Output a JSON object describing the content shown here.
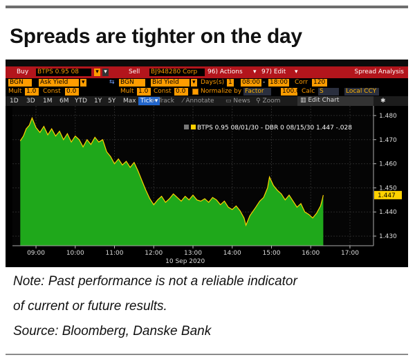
{
  "headline": "Spreads are tighter on the day",
  "toolbar": {
    "buy_label": "Buy",
    "buy_security": "BTPS 0.95 08",
    "sell_label": "Sell",
    "sell_security": "BJ948280 Corp",
    "actions_label": "96) Actions",
    "edit_label": "97) Edit",
    "app_title": "Spread Analysis"
  },
  "row_a": {
    "source": "BGN",
    "field": "Ask Yield",
    "source2": "BGN",
    "field2": "Bid Yield",
    "days_label": "Days(s)",
    "days_value": "1",
    "time_from": "08:00",
    "time_to": "18:00",
    "corr_label": "Corr",
    "corr_value": "120"
  },
  "row_b": {
    "mult_label": "Mult",
    "mult_value": "1.0",
    "const_label": "Const",
    "const_value": "0.0",
    "mult2_label": "Mult",
    "mult2_value": "1.0",
    "const2_label": "Const",
    "const2_value": "0.0",
    "normalize_label": "Normalize by",
    "normalize_option": "Factor",
    "factor_value": "100.0",
    "calc_label": "Calc",
    "calc_option": "S",
    "currency_option": "Local CCY"
  },
  "timeframes": [
    "1D",
    "3D",
    "1M",
    "6M",
    "YTD",
    "1Y",
    "5Y",
    "Max"
  ],
  "selected_timeframe": "Tick",
  "chart_tools": [
    "Track",
    "Annotate",
    "News",
    "Zoom"
  ],
  "edit_chart_label": "Edit Chart",
  "legend_text": "BTPS 0.95 08/01/30 - DBR 0 08/15/30 1.447 -.028",
  "date_label": "10 Sep 2020",
  "notes": {
    "line1": "Note: Past performance is not a reliable indicator",
    "line2": "of current or future results.",
    "line3": "Source: Bloomberg, Danske Bank"
  },
  "colors": {
    "area_fill": "#1fa81b",
    "price_line": "#ffd200",
    "last_badge": "#ffd200",
    "header_bar": "#b3151c",
    "field_box": "#ff9c00"
  },
  "chart_data": {
    "type": "area",
    "title": "",
    "xlabel": "",
    "ylabel": "",
    "ylim": [
      1.426,
      1.484
    ],
    "x_ticks": [
      "09:00",
      "10:00",
      "11:00",
      "12:00",
      "13:00",
      "14:00",
      "15:00",
      "16:00",
      "17:00"
    ],
    "y_ticks": [
      "1.480",
      "1.470",
      "1.460",
      "1.450",
      "1.440",
      "1.430"
    ],
    "last_value": "1.447",
    "series": [
      {
        "name": "BTPS 0.95 08/01/30 - DBR 0 08/15/30",
        "points": [
          [
            8.6,
            1.4695
          ],
          [
            8.68,
            1.4715
          ],
          [
            8.75,
            1.4745
          ],
          [
            8.83,
            1.476
          ],
          [
            8.9,
            1.479
          ],
          [
            8.95,
            1.477
          ],
          [
            9.0,
            1.475
          ],
          [
            9.1,
            1.473
          ],
          [
            9.2,
            1.4755
          ],
          [
            9.3,
            1.472
          ],
          [
            9.4,
            1.4745
          ],
          [
            9.5,
            1.4715
          ],
          [
            9.6,
            1.4735
          ],
          [
            9.7,
            1.47
          ],
          [
            9.8,
            1.4725
          ],
          [
            9.9,
            1.469
          ],
          [
            10.0,
            1.4715
          ],
          [
            10.1,
            1.47
          ],
          [
            10.2,
            1.467
          ],
          [
            10.3,
            1.47
          ],
          [
            10.4,
            1.468
          ],
          [
            10.5,
            1.471
          ],
          [
            10.6,
            1.469
          ],
          [
            10.7,
            1.47
          ],
          [
            10.8,
            1.465
          ],
          [
            10.9,
            1.463
          ],
          [
            11.0,
            1.46
          ],
          [
            11.1,
            1.462
          ],
          [
            11.2,
            1.4595
          ],
          [
            11.3,
            1.461
          ],
          [
            11.4,
            1.4585
          ],
          [
            11.5,
            1.4605
          ],
          [
            11.6,
            1.457
          ],
          [
            11.7,
            1.453
          ],
          [
            11.8,
            1.449
          ],
          [
            11.9,
            1.4455
          ],
          [
            12.0,
            1.443
          ],
          [
            12.1,
            1.445
          ],
          [
            12.2,
            1.4465
          ],
          [
            12.3,
            1.444
          ],
          [
            12.4,
            1.4455
          ],
          [
            12.5,
            1.4475
          ],
          [
            12.6,
            1.446
          ],
          [
            12.7,
            1.4445
          ],
          [
            12.8,
            1.4465
          ],
          [
            12.9,
            1.445
          ],
          [
            13.0,
            1.447
          ],
          [
            13.1,
            1.445
          ],
          [
            13.2,
            1.4445
          ],
          [
            13.3,
            1.4455
          ],
          [
            13.4,
            1.444
          ],
          [
            13.5,
            1.446
          ],
          [
            13.6,
            1.445
          ],
          [
            13.7,
            1.443
          ],
          [
            13.8,
            1.4445
          ],
          [
            13.9,
            1.442
          ],
          [
            14.0,
            1.441
          ],
          [
            14.1,
            1.4425
          ],
          [
            14.2,
            1.4405
          ],
          [
            14.3,
            1.4375
          ],
          [
            14.35,
            1.4345
          ],
          [
            14.45,
            1.4385
          ],
          [
            14.6,
            1.442
          ],
          [
            14.7,
            1.4445
          ],
          [
            14.8,
            1.446
          ],
          [
            14.9,
            1.45
          ],
          [
            14.95,
            1.4545
          ],
          [
            15.05,
            1.451
          ],
          [
            15.15,
            1.449
          ],
          [
            15.25,
            1.4475
          ],
          [
            15.35,
            1.445
          ],
          [
            15.45,
            1.447
          ],
          [
            15.55,
            1.4445
          ],
          [
            15.65,
            1.442
          ],
          [
            15.75,
            1.4435
          ],
          [
            15.85,
            1.44
          ],
          [
            15.95,
            1.439
          ],
          [
            16.05,
            1.4375
          ],
          [
            16.15,
            1.4395
          ],
          [
            16.25,
            1.4425
          ],
          [
            16.3,
            1.4455
          ],
          [
            16.32,
            1.447
          ]
        ]
      }
    ]
  }
}
